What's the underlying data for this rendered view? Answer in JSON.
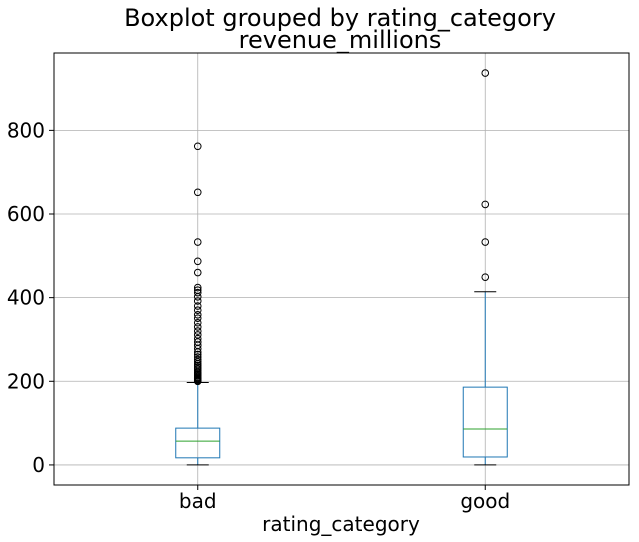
{
  "chart_data": {
    "type": "boxplot",
    "title": "Boxplot grouped by rating_category",
    "subtitle": "revenue_millions",
    "xlabel": "rating_category",
    "ylabel": "",
    "ylim": [
      -48,
      985
    ],
    "yticks": [
      0,
      200,
      400,
      600,
      800
    ],
    "grid": true,
    "categories": [
      "bad",
      "good"
    ],
    "boxes": [
      {
        "name": "bad",
        "whisker_low": 0,
        "q1": 17,
        "median": 57,
        "q3": 88,
        "whisker_high": 197,
        "outliers": [
          200,
          202,
          204,
          206,
          208,
          210,
          213,
          216,
          219,
          222,
          226,
          230,
          234,
          238,
          242,
          247,
          252,
          258,
          264,
          270,
          278,
          286,
          294,
          302,
          311,
          320,
          330,
          340,
          351,
          359,
          370,
          380,
          392,
          402,
          412,
          418,
          424,
          460,
          487,
          533,
          652,
          762
        ]
      },
      {
        "name": "good",
        "whisker_low": 0,
        "q1": 19,
        "median": 86,
        "q3": 186,
        "whisker_high": 414,
        "outliers": [
          449,
          533,
          623,
          937
        ]
      }
    ],
    "colors": {
      "box": "#1f77b4",
      "median": "#2ca02c",
      "whisker": "#1f77b4",
      "cap": "#000000",
      "flier": "#000000",
      "grid": "#b0b0b0"
    }
  }
}
